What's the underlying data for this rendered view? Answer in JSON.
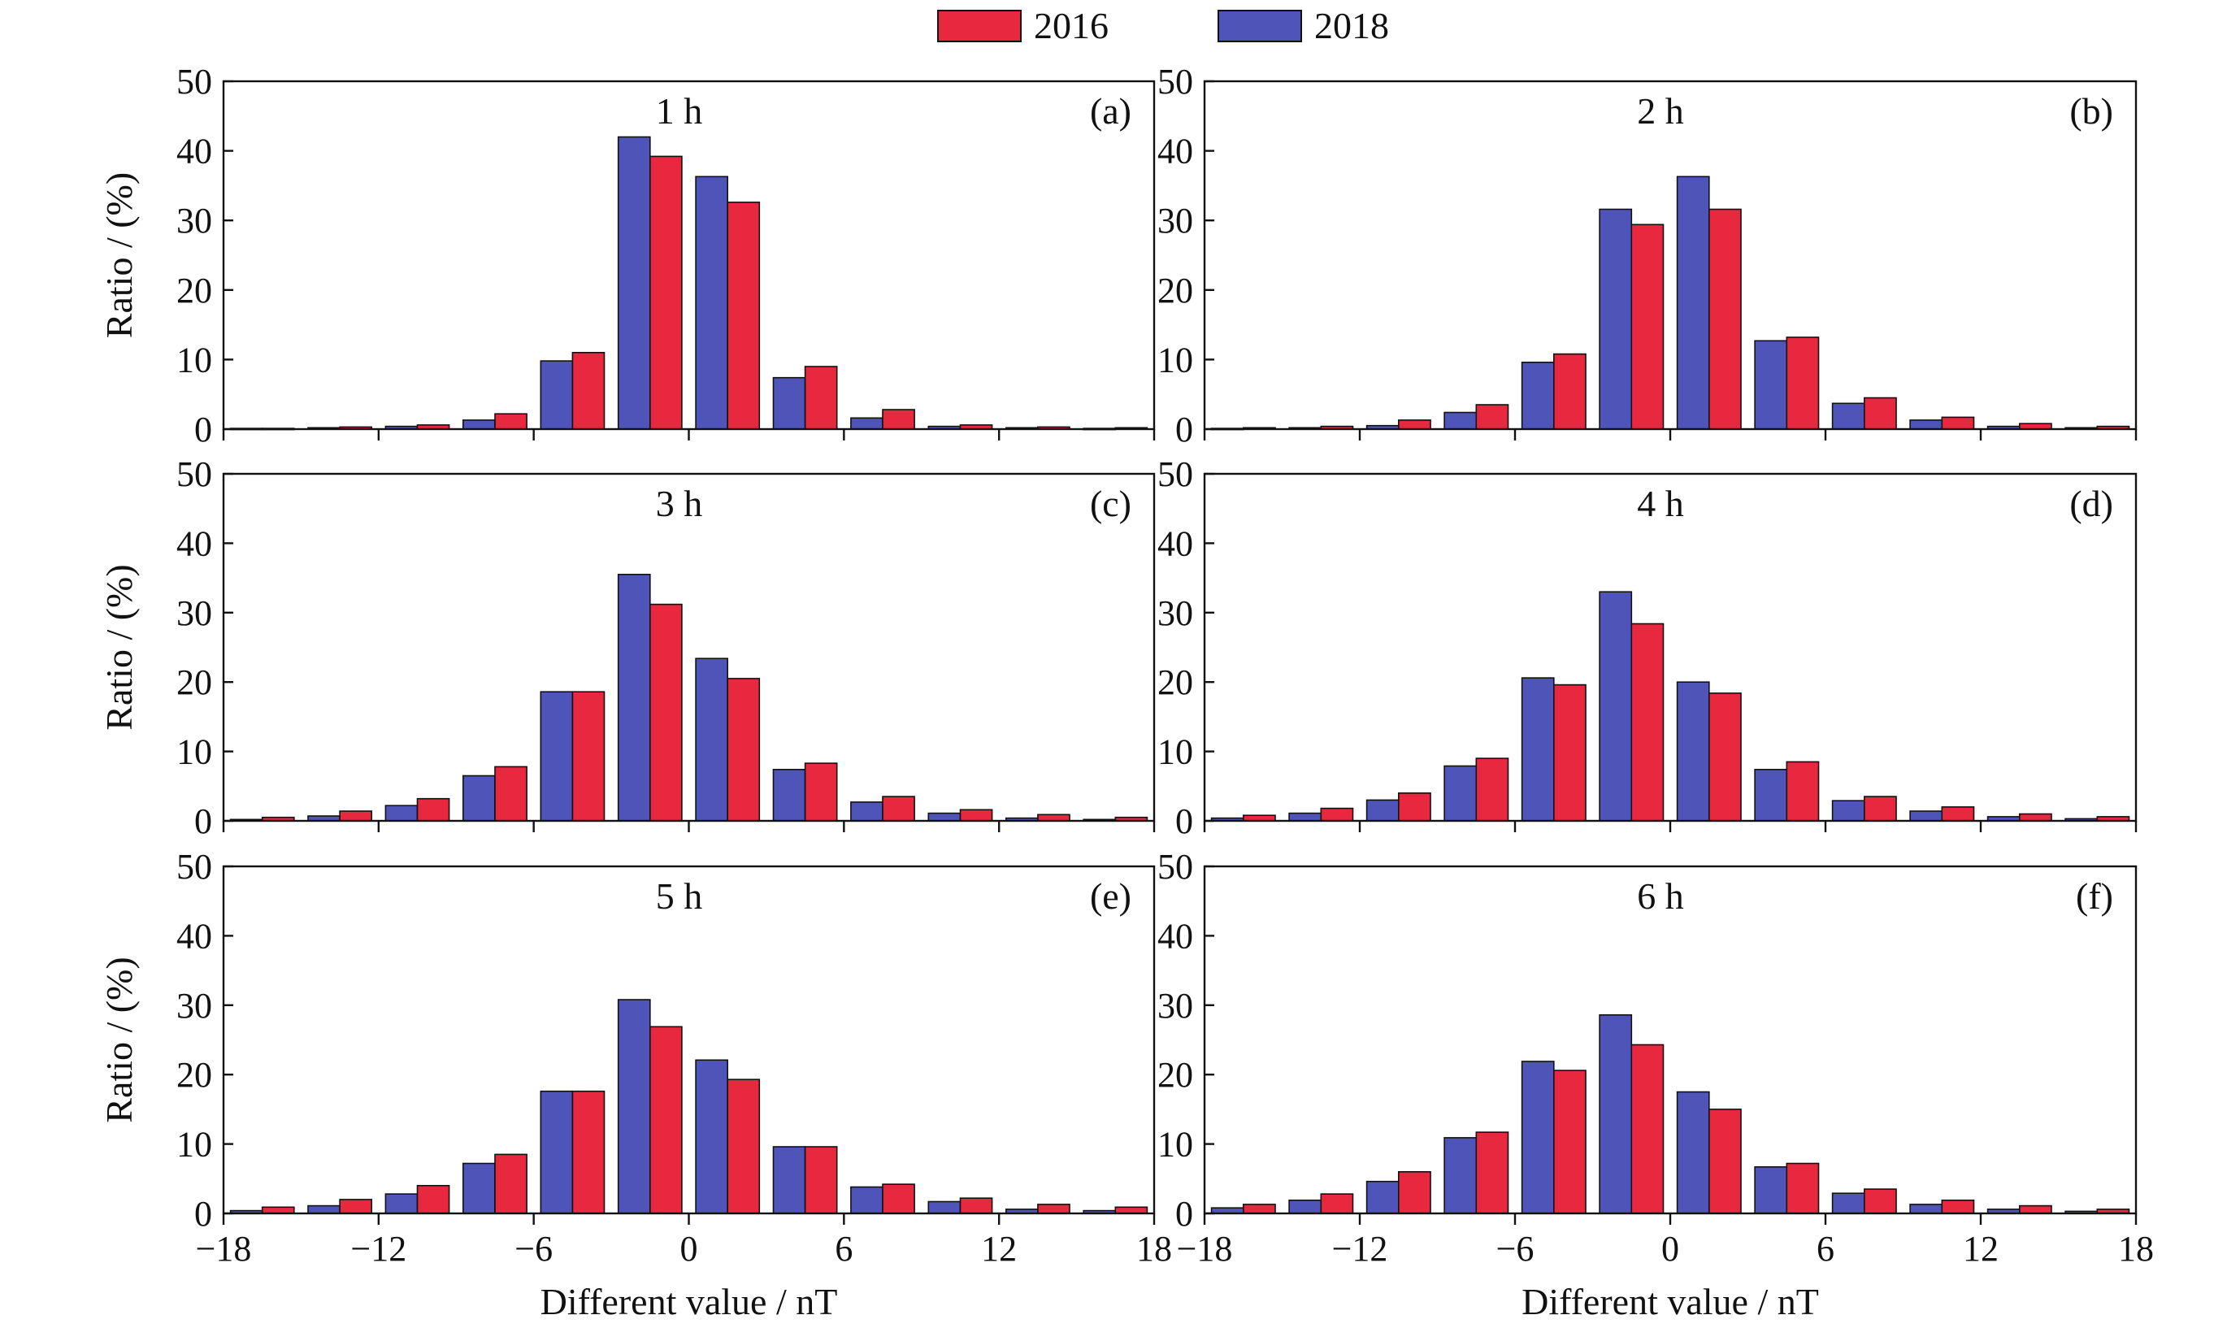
{
  "figure": {
    "legend": [
      {
        "label": "2016",
        "color": "#e8283f"
      },
      {
        "label": "2018",
        "color": "#4f55b8"
      }
    ],
    "xlabel": "Different value / nT",
    "ylabel": "Ratio / (%)"
  },
  "chart_data": [
    {
      "type": "bar",
      "panel": "(a)",
      "title": "1 h",
      "xlabel": "Different value / nT",
      "ylabel": "Ratio / (%)",
      "xlim": [
        -18,
        18
      ],
      "ylim": [
        0,
        50
      ],
      "xticks": [
        "−18",
        "−12",
        "−6",
        "0",
        "6",
        "12",
        "18"
      ],
      "yticks": [
        "0",
        "10",
        "20",
        "30",
        "40",
        "50"
      ],
      "bin_centers": [
        -16.5,
        -13.5,
        -10.5,
        -7.5,
        -4.5,
        -1.5,
        1.5,
        4.5,
        7.5,
        10.5,
        13.5,
        16.5
      ],
      "series": [
        {
          "name": "2018",
          "values": [
            0.1,
            0.2,
            0.4,
            1.3,
            9.8,
            42.0,
            36.3,
            7.4,
            1.6,
            0.4,
            0.2,
            0.1
          ]
        },
        {
          "name": "2016",
          "values": [
            0.1,
            0.3,
            0.6,
            2.2,
            11.0,
            39.2,
            32.6,
            9.0,
            2.8,
            0.6,
            0.3,
            0.2
          ]
        }
      ]
    },
    {
      "type": "bar",
      "panel": "(b)",
      "title": "2 h",
      "xlabel": "Different value / nT",
      "ylabel": "Ratio / (%)",
      "xlim": [
        -18,
        18
      ],
      "ylim": [
        0,
        50
      ],
      "xticks": [
        "−18",
        "−12",
        "−6",
        "0",
        "6",
        "12",
        "18"
      ],
      "yticks": [
        "0",
        "10",
        "20",
        "30",
        "40",
        "50"
      ],
      "bin_centers": [
        -16.5,
        -13.5,
        -10.5,
        -7.5,
        -4.5,
        -1.5,
        1.5,
        4.5,
        7.5,
        10.5,
        13.5,
        16.5
      ],
      "series": [
        {
          "name": "2018",
          "values": [
            0.1,
            0.2,
            0.5,
            2.4,
            9.6,
            31.6,
            36.3,
            12.7,
            3.7,
            1.3,
            0.4,
            0.2
          ]
        },
        {
          "name": "2016",
          "values": [
            0.2,
            0.4,
            1.3,
            3.5,
            10.8,
            29.4,
            31.6,
            13.2,
            4.5,
            1.7,
            0.8,
            0.4
          ]
        }
      ]
    },
    {
      "type": "bar",
      "panel": "(c)",
      "title": "3 h",
      "xlabel": "Different value / nT",
      "ylabel": "Ratio / (%)",
      "xlim": [
        -18,
        18
      ],
      "ylim": [
        0,
        50
      ],
      "xticks": [
        "−18",
        "−12",
        "−6",
        "0",
        "6",
        "12",
        "18"
      ],
      "yticks": [
        "0",
        "10",
        "20",
        "30",
        "40",
        "50"
      ],
      "bin_centers": [
        -16.5,
        -13.5,
        -10.5,
        -7.5,
        -4.5,
        -1.5,
        1.5,
        4.5,
        7.5,
        10.5,
        13.5,
        16.5
      ],
      "series": [
        {
          "name": "2018",
          "values": [
            0.2,
            0.7,
            2.2,
            6.5,
            18.6,
            35.5,
            23.4,
            7.4,
            2.7,
            1.1,
            0.4,
            0.2
          ]
        },
        {
          "name": "2016",
          "values": [
            0.5,
            1.4,
            3.2,
            7.8,
            18.6,
            31.2,
            20.5,
            8.3,
            3.5,
            1.6,
            0.9,
            0.5
          ]
        }
      ]
    },
    {
      "type": "bar",
      "panel": "(d)",
      "title": "4 h",
      "xlabel": "Different value / nT",
      "ylabel": "Ratio / (%)",
      "xlim": [
        -18,
        18
      ],
      "ylim": [
        0,
        50
      ],
      "xticks": [
        "−18",
        "−12",
        "−6",
        "0",
        "6",
        "12",
        "18"
      ],
      "yticks": [
        "0",
        "10",
        "20",
        "30",
        "40",
        "50"
      ],
      "bin_centers": [
        -16.5,
        -13.5,
        -10.5,
        -7.5,
        -4.5,
        -1.5,
        1.5,
        4.5,
        7.5,
        10.5,
        13.5,
        16.5
      ],
      "series": [
        {
          "name": "2018",
          "values": [
            0.4,
            1.1,
            3.0,
            7.9,
            20.6,
            33.0,
            20.0,
            7.4,
            2.9,
            1.4,
            0.6,
            0.3
          ]
        },
        {
          "name": "2016",
          "values": [
            0.8,
            1.8,
            4.0,
            9.0,
            19.6,
            28.4,
            18.4,
            8.5,
            3.5,
            2.0,
            1.0,
            0.6
          ]
        }
      ]
    },
    {
      "type": "bar",
      "panel": "(e)",
      "title": "5 h",
      "xlabel": "Different value / nT",
      "ylabel": "Ratio / (%)",
      "xlim": [
        -18,
        18
      ],
      "ylim": [
        0,
        50
      ],
      "xticks": [
        "−18",
        "−12",
        "−6",
        "0",
        "6",
        "12",
        "18"
      ],
      "yticks": [
        "0",
        "10",
        "20",
        "30",
        "40",
        "50"
      ],
      "bin_centers": [
        -16.5,
        -13.5,
        -10.5,
        -7.5,
        -4.5,
        -1.5,
        1.5,
        4.5,
        7.5,
        10.5,
        13.5,
        16.5
      ],
      "series": [
        {
          "name": "2018",
          "values": [
            0.4,
            1.1,
            2.8,
            7.2,
            17.6,
            30.8,
            22.1,
            9.6,
            3.8,
            1.7,
            0.6,
            0.4
          ]
        },
        {
          "name": "2016",
          "values": [
            0.9,
            2.0,
            4.0,
            8.5,
            17.6,
            26.9,
            19.3,
            9.6,
            4.2,
            2.2,
            1.3,
            0.9
          ]
        }
      ]
    },
    {
      "type": "bar",
      "panel": "(f)",
      "title": "6 h",
      "xlabel": "Different value / nT",
      "ylabel": "Ratio / (%)",
      "xlim": [
        -18,
        18
      ],
      "ylim": [
        0,
        50
      ],
      "xticks": [
        "−18",
        "−12",
        "−6",
        "0",
        "6",
        "12",
        "18"
      ],
      "yticks": [
        "0",
        "10",
        "20",
        "30",
        "40",
        "50"
      ],
      "bin_centers": [
        -16.5,
        -13.5,
        -10.5,
        -7.5,
        -4.5,
        -1.5,
        1.5,
        4.5,
        7.5,
        10.5,
        13.5,
        16.5
      ],
      "series": [
        {
          "name": "2018",
          "values": [
            0.8,
            1.9,
            4.6,
            10.9,
            21.9,
            28.6,
            17.5,
            6.7,
            2.9,
            1.3,
            0.6,
            0.3
          ]
        },
        {
          "name": "2016",
          "values": [
            1.3,
            2.8,
            6.0,
            11.7,
            20.6,
            24.3,
            15.0,
            7.2,
            3.5,
            1.9,
            1.1,
            0.6
          ]
        }
      ]
    }
  ]
}
